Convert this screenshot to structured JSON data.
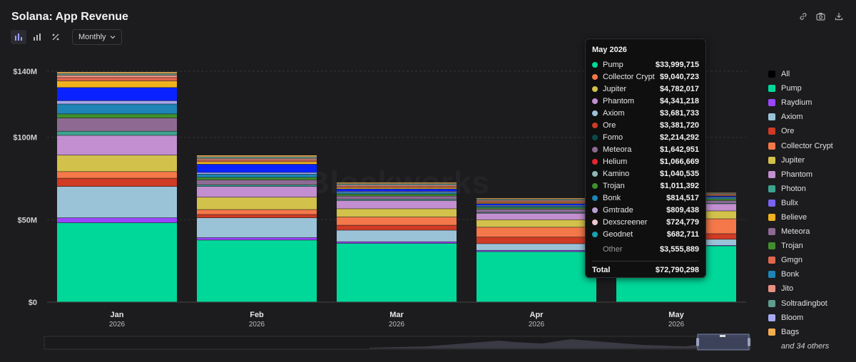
{
  "header": {
    "title": "Solana: App Revenue",
    "period_label": "Monthly",
    "watermark": "Blockworks"
  },
  "colors": {
    "background": "#1c1c1e",
    "tooltip_bg": "#0f0f10"
  },
  "legend": {
    "items": [
      {
        "label": "All",
        "color": "#000000"
      },
      {
        "label": "Pump",
        "color": "#00d89a"
      },
      {
        "label": "Raydium",
        "color": "#9c45ff"
      },
      {
        "label": "Axiom",
        "color": "#9ac3d8"
      },
      {
        "label": "Ore",
        "color": "#cf3b24"
      },
      {
        "label": "Collector Crypt",
        "color": "#f4784a"
      },
      {
        "label": "Jupiter",
        "color": "#d2c14a"
      },
      {
        "label": "Phantom",
        "color": "#c38fd0"
      },
      {
        "label": "Photon",
        "color": "#3da38f"
      },
      {
        "label": "Bullx",
        "color": "#7964f2"
      },
      {
        "label": "Believe",
        "color": "#efb21e"
      },
      {
        "label": "Meteora",
        "color": "#8e6a93"
      },
      {
        "label": "Trojan",
        "color": "#3f8f2d"
      },
      {
        "label": "Gmgn",
        "color": "#e0664e"
      },
      {
        "label": "Bonk",
        "color": "#1d84b5"
      },
      {
        "label": "Jito",
        "color": "#e99181"
      },
      {
        "label": "Soltradingbot",
        "color": "#5f9c8e"
      },
      {
        "label": "Bloom",
        "color": "#a6a8f0"
      },
      {
        "label": "Bags",
        "color": "#f2ad51"
      }
    ],
    "more": "and 34 others"
  },
  "tooltip": {
    "title": "May 2026",
    "rows": [
      {
        "name": "Pump",
        "value": "$33,999,715",
        "color": "#00d89a"
      },
      {
        "name": "Collector Crypt",
        "value": "$9,040,723",
        "color": "#f4784a"
      },
      {
        "name": "Jupiter",
        "value": "$4,782,017",
        "color": "#d2c14a"
      },
      {
        "name": "Phantom",
        "value": "$4,341,218",
        "color": "#c38fd0"
      },
      {
        "name": "Axiom",
        "value": "$3,681,733",
        "color": "#9ac3d8"
      },
      {
        "name": "Ore",
        "value": "$3,381,720",
        "color": "#cf3b24"
      },
      {
        "name": "Fomo",
        "value": "$2,214,292",
        "color": "#0b4a4a"
      },
      {
        "name": "Meteora",
        "value": "$1,642,951",
        "color": "#8e6a93"
      },
      {
        "name": "Helium",
        "value": "$1,066,669",
        "color": "#e8252e"
      },
      {
        "name": "Kamino",
        "value": "$1,040,535",
        "color": "#8cb8b6"
      },
      {
        "name": "Trojan",
        "value": "$1,011,392",
        "color": "#3f8f2d"
      },
      {
        "name": "Bonk",
        "value": "$814,517",
        "color": "#1d84b5"
      },
      {
        "name": "Gmtrade",
        "value": "$809,438",
        "color": "#b99ed2"
      },
      {
        "name": "Dexscreener",
        "value": "$724,779",
        "color": "#f2c7cf"
      },
      {
        "name": "Geodnet",
        "value": "$682,711",
        "color": "#17a2b0"
      }
    ],
    "other_label": "Other",
    "other_value": "$3,555,889",
    "total_label": "Total",
    "total_value": "$72,790,298"
  },
  "chart_data": {
    "type": "bar",
    "stacked": true,
    "title": "Solana: App Revenue",
    "categories": [
      "Jan",
      "Feb",
      "Mar",
      "Apr",
      "May"
    ],
    "category_years": [
      "2026",
      "2026",
      "2026",
      "2026",
      "2026"
    ],
    "y_ticks": [
      "$0",
      "$50M",
      "$100M",
      "$140M"
    ],
    "y_tick_values": [
      0,
      50,
      100,
      140
    ],
    "ylim": [
      0,
      140
    ],
    "unit": "$M",
    "series": [
      {
        "name": "Pump",
        "color": "#00d89a",
        "values": [
          48,
          37.5,
          35.5,
          30.5,
          34.0
        ]
      },
      {
        "name": "Raydium",
        "color": "#9c45ff",
        "values": [
          3,
          1.5,
          1,
          0.8,
          0.3
        ]
      },
      {
        "name": "Axiom",
        "color": "#9ac3d8",
        "values": [
          19,
          12,
          7,
          4,
          3.68
        ]
      },
      {
        "name": "Ore",
        "color": "#cf3b24",
        "values": [
          5,
          2,
          3,
          4,
          3.38
        ]
      },
      {
        "name": "Collector Crypt",
        "color": "#f4784a",
        "values": [
          4,
          3,
          5,
          6,
          9.04
        ]
      },
      {
        "name": "Jupiter",
        "color": "#d2c14a",
        "values": [
          10,
          7.5,
          5,
          4.5,
          4.78
        ]
      },
      {
        "name": "Phantom",
        "color": "#c38fd0",
        "values": [
          12,
          6.5,
          5,
          4,
          4.34
        ]
      },
      {
        "name": "Photon",
        "color": "#3da38f",
        "values": [
          2.5,
          1,
          0.7,
          0.5,
          0.3
        ]
      },
      {
        "name": "Meteora",
        "color": "#8e6a93",
        "values": [
          8,
          3,
          2,
          2,
          1.64
        ]
      },
      {
        "name": "Trojan",
        "color": "#3f8f2d",
        "values": [
          2.5,
          1.5,
          1.2,
          1,
          1.01
        ]
      },
      {
        "name": "Bonk",
        "color": "#1d84b5",
        "values": [
          6,
          2,
          1,
          0.8,
          0.81
        ]
      },
      {
        "name": "Bloom",
        "color": "#a6a8f0",
        "values": [
          2,
          1,
          0.6,
          0.5,
          0.3
        ]
      },
      {
        "name": "Other",
        "color": "#0a22ff",
        "values": [
          8,
          5,
          1.5,
          1,
          0.6
        ]
      },
      {
        "name": "Believe",
        "color": "#efb21e",
        "values": [
          4,
          1.5,
          0.8,
          0.6,
          0.4
        ]
      },
      {
        "name": "Gmgn",
        "color": "#e0664e",
        "values": [
          2,
          1,
          0.8,
          0.7,
          0.5
        ]
      },
      {
        "name": "Jito",
        "color": "#e99181",
        "values": [
          1.5,
          1,
          0.8,
          0.7,
          0.5
        ]
      },
      {
        "name": "Soltradingbot",
        "color": "#5f9c8e",
        "values": [
          1,
          1,
          0.8,
          0.7,
          0.5
        ]
      },
      {
        "name": "Bags",
        "color": "#f2ad51",
        "values": [
          1,
          1,
          0.8,
          0.7,
          0.4
        ]
      }
    ]
  }
}
